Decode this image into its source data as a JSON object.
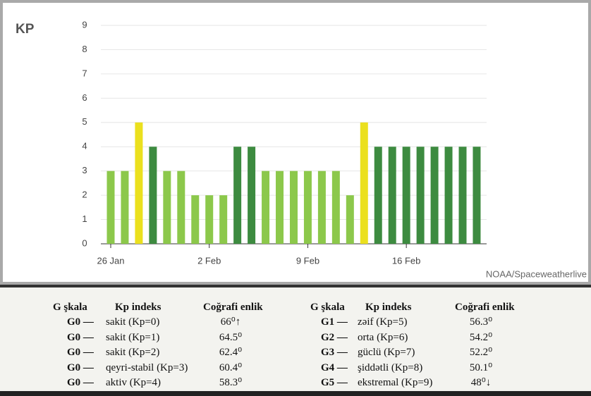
{
  "chart_data": {
    "type": "bar",
    "title": "KP",
    "categories": [
      "26 Jan",
      null,
      null,
      null,
      null,
      null,
      null,
      "2 Feb",
      null,
      null,
      null,
      null,
      null,
      null,
      "9 Feb",
      null,
      null,
      null,
      null,
      null,
      null,
      "16 Feb",
      null,
      null,
      null,
      null,
      null
    ],
    "values": [
      3,
      3,
      5,
      4,
      3,
      3,
      2,
      2,
      2,
      4,
      4,
      3,
      3,
      3,
      3,
      3,
      3,
      2,
      5,
      4,
      4,
      4,
      4,
      4,
      4,
      4,
      4
    ],
    "colors": [
      "#8cc84b",
      "#8cc84b",
      "#ebe01e",
      "#3d8b40",
      "#8cc84b",
      "#8cc84b",
      "#8cc84b",
      "#8cc84b",
      "#8cc84b",
      "#3d8b40",
      "#3d8b40",
      "#8cc84b",
      "#8cc84b",
      "#8cc84b",
      "#8cc84b",
      "#8cc84b",
      "#8cc84b",
      "#8cc84b",
      "#ebe01e",
      "#3d8b40",
      "#3d8b40",
      "#3d8b40",
      "#3d8b40",
      "#3d8b40",
      "#3d8b40",
      "#3d8b40",
      "#3d8b40"
    ],
    "ylim": [
      0,
      9
    ],
    "yticks": [
      0,
      1,
      2,
      3,
      4,
      5,
      6,
      7,
      8,
      9
    ],
    "grid": true,
    "source": "NOAA/Spaceweatherlive"
  },
  "table": {
    "headers": [
      "G şkala",
      "Kp indeks",
      "Coğrafi enlik",
      "G şkala",
      "Kp indeks",
      "Coğrafi enlik"
    ],
    "rows": [
      [
        "G0 —",
        "sakit (Kp=0)",
        "66⁰↑",
        "G1 —",
        "zəif (Kp=5)",
        "56.3⁰"
      ],
      [
        "G0 —",
        "sakit (Kp=1)",
        "64.5⁰",
        "G2 —",
        "orta (Kp=6)",
        "54.2⁰"
      ],
      [
        "G0 —",
        "sakit (Kp=2)",
        "62.4⁰",
        "G3 —",
        "güclü (Kp=7)",
        "52.2⁰"
      ],
      [
        "G0 —",
        "qeyri-stabil (Kp=3)",
        "60.4⁰",
        "G4 —",
        "şiddətli (Kp=8)",
        "50.1⁰"
      ],
      [
        "G0 —",
        "aktiv (Kp=4)",
        "58.3⁰",
        "G5 —",
        "ekstremal (Kp=9)",
        "48⁰↓"
      ]
    ]
  }
}
